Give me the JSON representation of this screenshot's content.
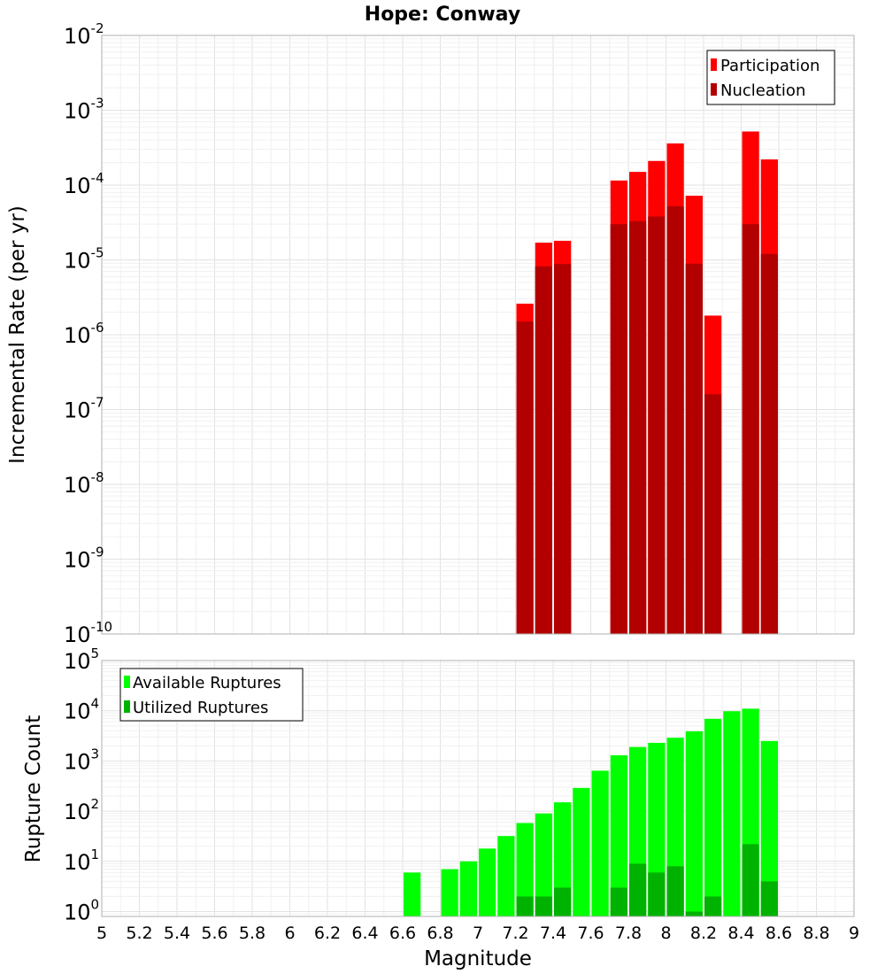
{
  "chart_data": [
    {
      "type": "bar",
      "title": "Hope: Conway",
      "xlabel": "",
      "ylabel": "Incremental Rate (per yr)",
      "yscale": "log",
      "xlim": [
        5,
        9
      ],
      "ylim": [
        1e-10,
        0.01
      ],
      "y_ticks": [
        "10^-10",
        "10^-9",
        "10^-8",
        "10^-7",
        "10^-6",
        "10^-5",
        "10^-4",
        "10^-3",
        "10^-2"
      ],
      "grid": true,
      "legend_position": "top-right",
      "bar_width": 0.1,
      "x": [
        7.25,
        7.35,
        7.45,
        7.75,
        7.85,
        7.95,
        8.05,
        8.15,
        8.25,
        8.45,
        8.55
      ],
      "series": [
        {
          "name": "Participation",
          "color": "#ff0000",
          "values": [
            2.6e-06,
            1.7e-05,
            1.8e-05,
            0.000115,
            0.00015,
            0.00021,
            0.00036,
            7.2e-05,
            1.8e-06,
            0.00052,
            0.00022
          ]
        },
        {
          "name": "Nucleation",
          "color": "#b20000",
          "values": [
            1.5e-06,
            8.2e-06,
            8.8e-06,
            3e-05,
            3.3e-05,
            3.8e-05,
            5.2e-05,
            8.9e-06,
            1.6e-07,
            3e-05,
            1.2e-05
          ]
        }
      ]
    },
    {
      "type": "bar",
      "title": "",
      "xlabel": "Magnitude",
      "ylabel": "Rupture Count",
      "yscale": "log",
      "xlim": [
        5,
        9
      ],
      "ylim": [
        0.8,
        100000.0
      ],
      "x_ticks": [
        "5",
        "5.2",
        "5.4",
        "5.6",
        "5.8",
        "6",
        "6.2",
        "6.4",
        "6.6",
        "6.8",
        "7",
        "7.2",
        "7.4",
        "7.6",
        "7.8",
        "8",
        "8.2",
        "8.4",
        "8.6",
        "8.8",
        "9"
      ],
      "y_ticks": [
        "10^0",
        "10^1",
        "10^2",
        "10^3",
        "10^4",
        "10^5"
      ],
      "grid": true,
      "legend_position": "top-left",
      "bar_width": 0.1,
      "x": [
        6.65,
        6.85,
        6.95,
        7.05,
        7.15,
        7.25,
        7.35,
        7.45,
        7.55,
        7.65,
        7.75,
        7.85,
        7.95,
        8.05,
        8.15,
        8.25,
        8.35,
        8.45,
        8.55
      ],
      "series": [
        {
          "name": "Available Ruptures",
          "color": "#00ff00",
          "values": [
            6,
            7,
            10,
            18,
            32,
            58,
            90,
            150,
            290,
            640,
            1300,
            1900,
            2300,
            2900,
            3900,
            6900,
            9800,
            11000,
            2500
          ]
        },
        {
          "name": "Utilized Ruptures",
          "color": "#00b200",
          "values": [
            0,
            0,
            0,
            0,
            0,
            2,
            2,
            3,
            0,
            0,
            3,
            9,
            6,
            8,
            1,
            2,
            0,
            22,
            4
          ]
        }
      ]
    }
  ]
}
